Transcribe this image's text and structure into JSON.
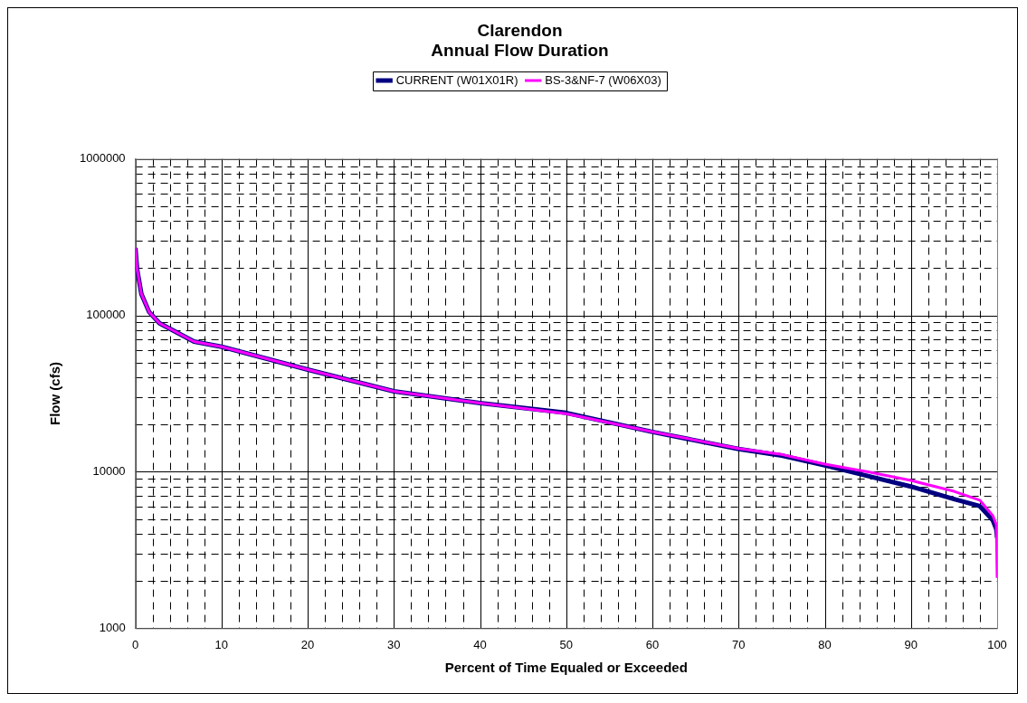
{
  "chart_data": {
    "type": "line",
    "title": "Clarendon\nAnnual Flow Duration",
    "xlabel": "Percent of Time Equaled or Exceeded",
    "ylabel": "Flow (cfs)",
    "x": [
      0,
      0.2,
      0.7,
      1.6,
      2.8,
      6.8,
      10,
      20,
      30,
      40,
      50,
      60,
      70,
      75,
      80,
      85,
      90,
      95,
      98,
      99.5,
      99.9,
      100
    ],
    "series": [
      {
        "name": "CURRENT (W01X01R)",
        "color": "#000080",
        "values": [
          270000,
          197000,
          137000,
          105000,
          89000,
          68000,
          63000,
          45000,
          32700,
          27500,
          23800,
          18000,
          14000,
          12700,
          11000,
          9400,
          8050,
          6700,
          6030,
          4900,
          4300,
          3800
        ]
      },
      {
        "name": "BS-3&NF-7 (W06X03)",
        "color": "#ff00ff",
        "values": [
          270000,
          197000,
          137000,
          105000,
          89000,
          68000,
          63000,
          45000,
          32700,
          27500,
          23500,
          18000,
          14100,
          12900,
          11200,
          10000,
          8800,
          7500,
          6580,
          5240,
          4600,
          2100
        ]
      }
    ],
    "log": "y",
    "xlim": [
      0,
      100
    ],
    "ylim": [
      1000,
      1000000
    ],
    "xticks": [
      0,
      {
        "value": 2,
        "label": null
      },
      {
        "value": 4,
        "label": null
      },
      {
        "value": 6,
        "label": null
      },
      {
        "value": 8,
        "label": null
      },
      10,
      {
        "value": 12,
        "label": null
      },
      {
        "value": 14,
        "label": null
      },
      {
        "value": 16,
        "label": null
      },
      {
        "value": 18,
        "label": null
      },
      20,
      {
        "value": 22,
        "label": null
      },
      {
        "value": 24,
        "label": null
      },
      {
        "value": 26,
        "label": null
      },
      {
        "value": 28,
        "label": null
      },
      30,
      {
        "value": 32,
        "label": null
      },
      {
        "value": 34,
        "label": null
      },
      {
        "value": 36,
        "label": null
      },
      {
        "value": 38,
        "label": null
      },
      40,
      {
        "value": 42,
        "label": null
      },
      {
        "value": 44,
        "label": null
      },
      {
        "value": 46,
        "label": null
      },
      {
        "value": 48,
        "label": null
      },
      50,
      {
        "value": 52,
        "label": null
      },
      {
        "value": 54,
        "label": null
      },
      {
        "value": 56,
        "label": null
      },
      {
        "value": 58,
        "label": null
      },
      60,
      {
        "value": 62,
        "label": null
      },
      {
        "value": 64,
        "label": null
      },
      {
        "value": 66,
        "label": null
      },
      {
        "value": 68,
        "label": null
      },
      70,
      {
        "value": 72,
        "label": null
      },
      {
        "value": 74,
        "label": null
      },
      {
        "value": 76,
        "label": null
      },
      {
        "value": 78,
        "label": null
      },
      80,
      {
        "value": 82,
        "label": null
      },
      {
        "value": 84,
        "label": null
      },
      {
        "value": 86,
        "label": null
      },
      {
        "value": 88,
        "label": null
      },
      90,
      {
        "value": 92,
        "label": null
      },
      {
        "value": 94,
        "label": null
      },
      {
        "value": 96,
        "label": null
      },
      {
        "value": 98,
        "label": null
      },
      100
    ],
    "yticks": [
      1000,
      {
        "value": 2000,
        "label": null
      },
      {
        "value": 3000,
        "label": null
      },
      {
        "value": 4000,
        "label": null
      },
      {
        "value": 5000,
        "label": null
      },
      {
        "value": 6000,
        "label": null
      },
      {
        "value": 7000,
        "label": null
      },
      {
        "value": 8000,
        "label": null
      },
      {
        "value": 9000,
        "label": null
      },
      10000,
      {
        "value": 20000,
        "label": null
      },
      {
        "value": 30000,
        "label": null
      },
      {
        "value": 40000,
        "label": null
      },
      {
        "value": 50000,
        "label": null
      },
      {
        "value": 60000,
        "label": null
      },
      {
        "value": 70000,
        "label": null
      },
      {
        "value": 80000,
        "label": null
      },
      {
        "value": 90000,
        "label": null
      },
      100000,
      {
        "value": 200000,
        "label": null
      },
      {
        "value": 300000,
        "label": null
      },
      {
        "value": 400000,
        "label": null
      },
      {
        "value": 500000,
        "label": null
      },
      {
        "value": 600000,
        "label": null
      },
      {
        "value": 700000,
        "label": null
      },
      {
        "value": 800000,
        "label": null
      },
      {
        "value": 900000,
        "label": null
      },
      1000000
    ],
    "grid": true,
    "legend": "top",
    "marker": "none",
    "line_style": "solid"
  }
}
